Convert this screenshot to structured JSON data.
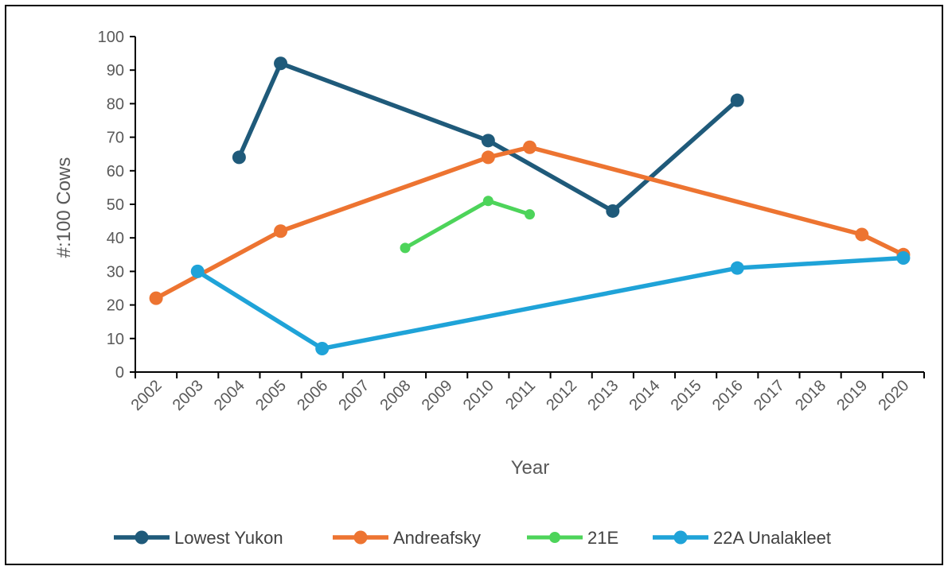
{
  "chart_data": {
    "type": "line",
    "xlabel": "Year",
    "ylabel": "#:100 Cows",
    "categories": [
      "2002",
      "2003",
      "2004",
      "2005",
      "2006",
      "2007",
      "2008",
      "2009",
      "2010",
      "2011",
      "2012",
      "2013",
      "2014",
      "2015",
      "2016",
      "2017",
      "2018",
      "2019",
      "2020"
    ],
    "ylim": [
      0,
      100
    ],
    "yticks": [
      0,
      10,
      20,
      30,
      40,
      50,
      60,
      70,
      80,
      90,
      100
    ],
    "grid": false,
    "legend_position": "bottom",
    "series": [
      {
        "name": "Lowest Yukon",
        "color": "#1F5A7A",
        "points": [
          [
            2004,
            64
          ],
          [
            2005,
            92
          ],
          [
            2010,
            69
          ],
          [
            2013,
            48
          ],
          [
            2016,
            81
          ]
        ]
      },
      {
        "name": "Andreafsky",
        "color": "#ED7431",
        "points": [
          [
            2002,
            22
          ],
          [
            2005,
            42
          ],
          [
            2010,
            64
          ],
          [
            2011,
            67
          ],
          [
            2019,
            41
          ],
          [
            2020,
            35
          ]
        ]
      },
      {
        "name": "21E",
        "color": "#4DD45A",
        "points": [
          [
            2008,
            37
          ],
          [
            2010,
            51
          ],
          [
            2011,
            47
          ]
        ]
      },
      {
        "name": "22A Unalakleet",
        "color": "#1FA3D8",
        "points": [
          [
            2003,
            30
          ],
          [
            2006,
            7
          ],
          [
            2016,
            31
          ],
          [
            2020,
            34
          ]
        ]
      }
    ]
  }
}
